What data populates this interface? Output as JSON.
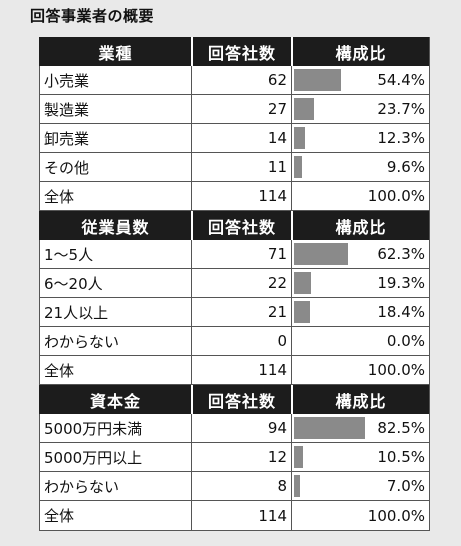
{
  "title": "回答事業者の概要",
  "colors": {
    "header_bg": "#1c1c1c",
    "bar": "#8a8a8a",
    "background": "#e9e9e9"
  },
  "sections": [
    {
      "header": {
        "category": "業種",
        "count": "回答社数",
        "ratio": "構成比"
      },
      "rows": [
        {
          "label": "小売業",
          "count": "62",
          "ratio": "54.4%",
          "ratio_value": 54.4
        },
        {
          "label": "製造業",
          "count": "27",
          "ratio": "23.7%",
          "ratio_value": 23.7
        },
        {
          "label": "卸売業",
          "count": "14",
          "ratio": "12.3%",
          "ratio_value": 12.3
        },
        {
          "label": "その他",
          "count": "11",
          "ratio": "9.6%",
          "ratio_value": 9.6
        },
        {
          "label": "全体",
          "count": "114",
          "ratio": "100.0%",
          "ratio_value": null
        }
      ]
    },
    {
      "header": {
        "category": "従業員数",
        "count": "回答社数",
        "ratio": "構成比"
      },
      "rows": [
        {
          "label": "1～5人",
          "count": "71",
          "ratio": "62.3%",
          "ratio_value": 62.3
        },
        {
          "label": "6～20人",
          "count": "22",
          "ratio": "19.3%",
          "ratio_value": 19.3
        },
        {
          "label": "21人以上",
          "count": "21",
          "ratio": "18.4%",
          "ratio_value": 18.4
        },
        {
          "label": "わからない",
          "count": "0",
          "ratio": "0.0%",
          "ratio_value": 0
        },
        {
          "label": "全体",
          "count": "114",
          "ratio": "100.0%",
          "ratio_value": null
        }
      ]
    },
    {
      "header": {
        "category": "資本金",
        "count": "回答社数",
        "ratio": "構成比"
      },
      "rows": [
        {
          "label": "5000万円未満",
          "count": "94",
          "ratio": "82.5%",
          "ratio_value": 82.5
        },
        {
          "label": "5000万円以上",
          "count": "12",
          "ratio": "10.5%",
          "ratio_value": 10.5
        },
        {
          "label": "わからない",
          "count": "8",
          "ratio": "7.0%",
          "ratio_value": 7.0
        },
        {
          "label": "全体",
          "count": "114",
          "ratio": "100.0%",
          "ratio_value": null
        }
      ]
    }
  ]
}
